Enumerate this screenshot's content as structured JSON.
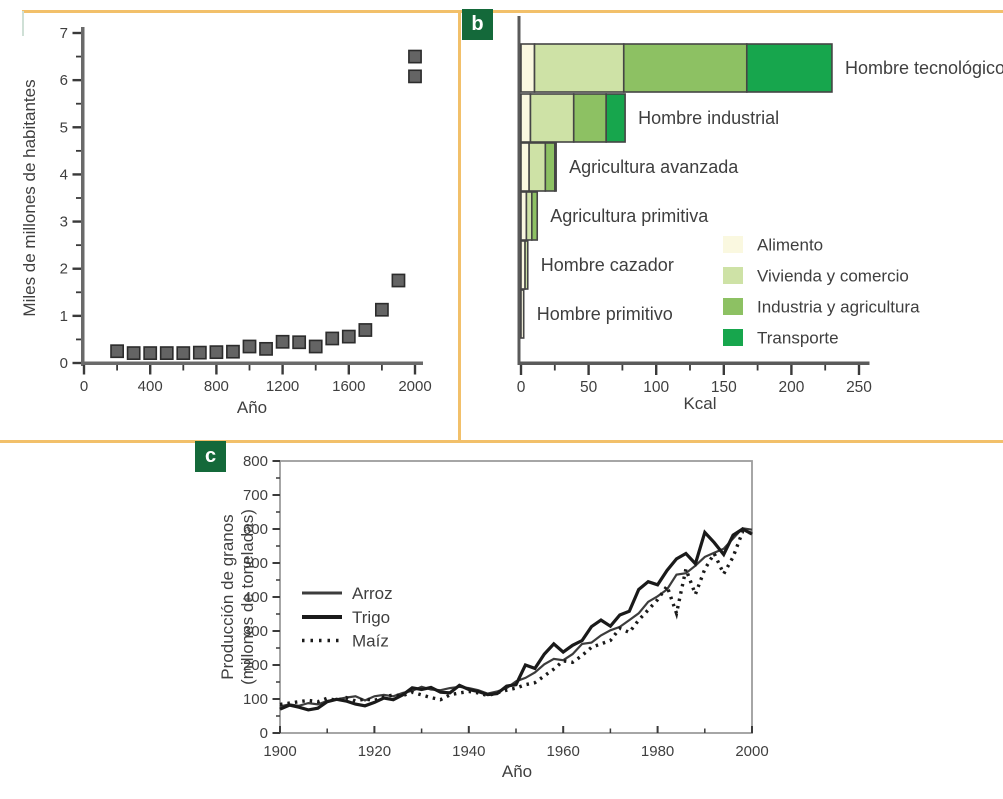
{
  "figure": {
    "badges": {
      "b": "b",
      "c": "c"
    },
    "colors": {
      "panel_border": "#f2c06a",
      "badge_background": "#14693a",
      "badge_text": "#ffffff",
      "text": "#3f3f3f",
      "axis_gray": "#6a6a6a"
    }
  },
  "chart_data": [
    {
      "id": "poblacion-mundial",
      "type": "scatter",
      "marker": "square",
      "marker_fill": "#646464",
      "marker_edge": "#2c2c2c",
      "xlabel": "Año",
      "ylabel": "Miles de millones de habitantes",
      "xlim": [
        0,
        2060
      ],
      "ylim": [
        0,
        7
      ],
      "xticks_major": [
        0,
        400,
        800,
        1200,
        1600,
        2000
      ],
      "xticks_minor": [
        200,
        600,
        1000,
        1400,
        1800
      ],
      "yticks_major": [
        0,
        1,
        2,
        3,
        4,
        5,
        6,
        7
      ],
      "yticks_minor": [
        0.5,
        1.5,
        2.5,
        3.5,
        4.5,
        5.5,
        6.5
      ],
      "points": [
        [
          200,
          0.25
        ],
        [
          300,
          0.21
        ],
        [
          400,
          0.21
        ],
        [
          500,
          0.21
        ],
        [
          600,
          0.21
        ],
        [
          700,
          0.22
        ],
        [
          800,
          0.23
        ],
        [
          900,
          0.24
        ],
        [
          1000,
          0.35
        ],
        [
          1100,
          0.3
        ],
        [
          1200,
          0.45
        ],
        [
          1300,
          0.44
        ],
        [
          1400,
          0.35
        ],
        [
          1500,
          0.52
        ],
        [
          1600,
          0.56
        ],
        [
          1700,
          0.7
        ],
        [
          1800,
          1.13
        ],
        [
          1900,
          1.75
        ],
        [
          2000,
          6.08
        ],
        [
          2000,
          6.5
        ]
      ]
    },
    {
      "id": "consumo-energia-per-capita",
      "type": "bar",
      "orientation": "horizontal",
      "xlabel": "Kcal",
      "xlim": [
        0,
        250
      ],
      "xticks_major": [
        0,
        50,
        100,
        150,
        200,
        250
      ],
      "xticks_minor": [
        25,
        75,
        125,
        175,
        225
      ],
      "categories": [
        "Hombre tecnológico",
        "Hombre industrial",
        "Agricultura avanzada",
        "Agricultura  primitiva",
        "Hombre cazador",
        "Hombre primitivo"
      ],
      "series": [
        {
          "name": "Alimento",
          "color": "#faf8e0",
          "values": [
            10,
            7,
            6,
            4,
            3,
            2
          ]
        },
        {
          "name": "Vivienda y comercio",
          "color": "#cee2a6",
          "values": [
            66,
            32,
            12,
            4,
            2,
            0
          ]
        },
        {
          "name": "Industria y agricultura",
          "color": "#8dc163",
          "values": [
            91,
            24,
            7,
            4,
            0,
            0
          ]
        },
        {
          "name": "Transporte",
          "color": "#17a64d",
          "values": [
            63,
            14,
            1,
            0,
            0,
            0
          ]
        }
      ],
      "legend_position": "lower-right-inside"
    },
    {
      "id": "produccion-granos",
      "type": "line",
      "xlabel": "Año",
      "ylabel_line1": "Producción de granos",
      "ylabel_line2": "(millones de toneladas)",
      "xlim": [
        1900,
        2000
      ],
      "ylim": [
        0,
        800
      ],
      "xticks_major": [
        1900,
        1920,
        1940,
        1960,
        1980,
        2000
      ],
      "xticks_minor": [
        1910,
        1930,
        1950,
        1970,
        1990
      ],
      "yticks_major": [
        0,
        100,
        200,
        300,
        400,
        500,
        600,
        700,
        800
      ],
      "yticks_minor": [
        50,
        150,
        250,
        350,
        450,
        550,
        650,
        750
      ],
      "x_step": 2,
      "series": [
        {
          "name": "Arroz",
          "style": "solid-thin",
          "color": "#3c3c3c",
          "width": 2.2,
          "y": [
            78,
            84,
            80,
            88,
            84,
            94,
            99,
            104,
            108,
            96,
            108,
            112,
            108,
            118,
            124,
            136,
            128,
            126,
            132,
            136,
            132,
            126,
            116,
            122,
            132,
            152,
            162,
            178,
            202,
            218,
            214,
            232,
            262,
            266,
            287,
            302,
            312,
            332,
            352,
            386,
            402,
            422,
            466,
            470,
            492,
            518,
            530,
            542,
            572,
            602,
            598
          ]
        },
        {
          "name": "Trigo",
          "style": "solid-thick",
          "color": "#1a1a1a",
          "width": 3.2,
          "y": [
            70,
            82,
            76,
            68,
            73,
            92,
            99,
            94,
            85,
            80,
            90,
            103,
            98,
            112,
            133,
            128,
            134,
            120,
            118,
            140,
            128,
            122,
            113,
            116,
            138,
            142,
            200,
            190,
            232,
            262,
            238,
            258,
            272,
            313,
            332,
            314,
            347,
            358,
            422,
            445,
            436,
            478,
            512,
            528,
            498,
            590,
            560,
            525,
            582,
            600,
            585
          ]
        },
        {
          "name": "Maíz",
          "style": "dotted",
          "color": "#1a1a1a",
          "width": 3.4,
          "y": [
            84,
            88,
            92,
            96,
            92,
            102,
            96,
            104,
            94,
            100,
            96,
            106,
            112,
            110,
            120,
            112,
            104,
            98,
            112,
            118,
            122,
            118,
            110,
            118,
            126,
            132,
            142,
            148,
            168,
            188,
            212,
            208,
            228,
            252,
            262,
            272,
            308,
            296,
            332,
            362,
            392,
            432,
            352,
            482,
            408,
            482,
            528,
            468,
            518,
            592,
            588
          ]
        }
      ]
    }
  ]
}
